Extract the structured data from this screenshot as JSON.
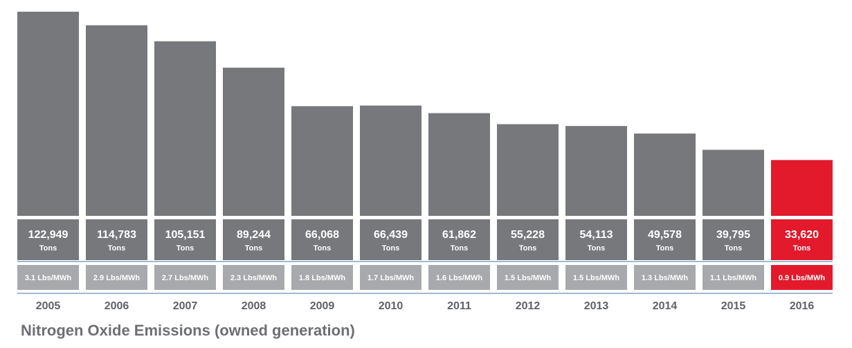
{
  "chart_data": {
    "type": "bar",
    "title": "Nitrogen Oxide Emissions (owned generation)",
    "xlabel": "",
    "ylabel": "",
    "ylim": [
      0,
      125000
    ],
    "unit_label": "Tons",
    "categories": [
      "2005",
      "2006",
      "2007",
      "2008",
      "2009",
      "2010",
      "2011",
      "2012",
      "2013",
      "2014",
      "2015",
      "2016"
    ],
    "values": [
      122949,
      114783,
      105151,
      89244,
      66068,
      66439,
      61862,
      55228,
      54113,
      49578,
      39795,
      33620
    ],
    "value_labels": [
      "122,949",
      "114,783",
      "105,151",
      "89,244",
      "66,068",
      "66,439",
      "61,862",
      "55,228",
      "54,113",
      "49,578",
      "39,795",
      "33,620"
    ],
    "rate_labels": [
      "3.1 Lbs/MWh",
      "2.9 Lbs/MWh",
      "2.7 Lbs/MWh",
      "2.3 Lbs/MWh",
      "1.8 Lbs/MWh",
      "1.7 Lbs/MWh",
      "1.6 Lbs/MWh",
      "1.5 Lbs/MWh",
      "1.5 Lbs/MWh",
      "1.3 Lbs/MWh",
      "1.1 Lbs/MWh",
      "0.9 Lbs/MWh"
    ],
    "highlight_category": "2016"
  },
  "colors": {
    "bar": "#77787c",
    "bar_highlight": "#e21a2c",
    "rate_box": "#a7a9ac",
    "rate_box_highlight": "#e21a2c",
    "rule": "#7ea3c4",
    "year_text": "#5f6166",
    "title_text": "#6d6f73"
  }
}
